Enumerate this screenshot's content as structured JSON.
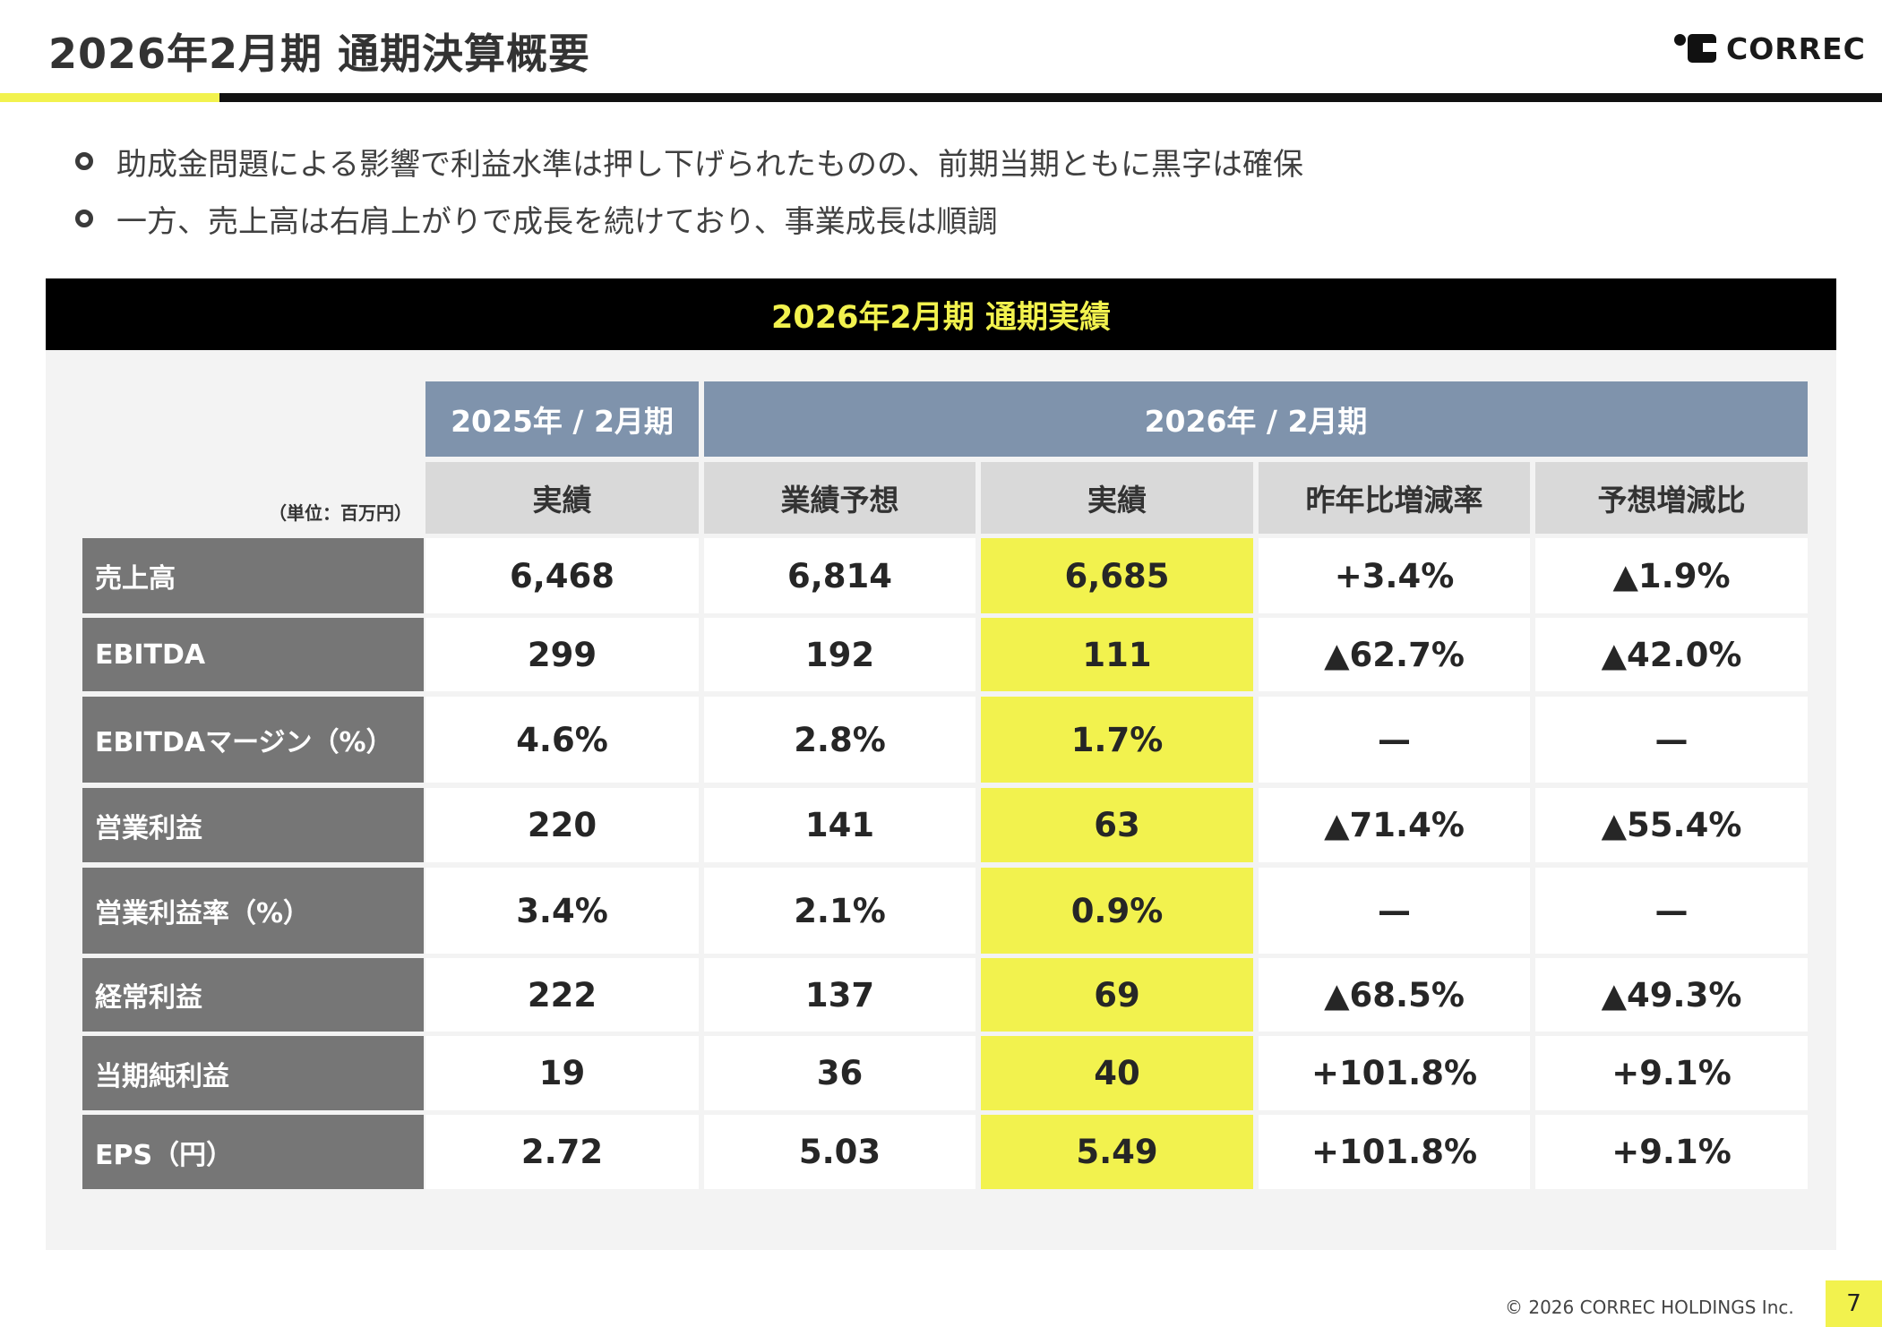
{
  "header": {
    "title": "2026年2月期 通期決算概要",
    "logo_text": "CORREC"
  },
  "bullets": [
    "助成金問題による影響で利益水準は押し下げられたものの、前期当期ともに黒字は確保",
    "一方、売上高は右肩上がりで成長を続けており、事業成長は順調"
  ],
  "table": {
    "banner": "2026年2月期 通期実績",
    "unit_note": "（単位：百万円）",
    "year_headers": [
      "2025年 / 2月期",
      "2026年 / 2月期"
    ],
    "columns": [
      "実績",
      "業績予想",
      "実績",
      "昨年比増減率",
      "予想増減比"
    ],
    "rows": [
      {
        "label": "売上高",
        "values": [
          "6,468",
          "6,814",
          "6,685",
          "+3.4%",
          "▲1.9%"
        ]
      },
      {
        "label": "EBITDA",
        "values": [
          "299",
          "192",
          "111",
          "▲62.7%",
          "▲42.0%"
        ]
      },
      {
        "label": "EBITDAマージン（%）",
        "values": [
          "4.6%",
          "2.8%",
          "1.7%",
          "—",
          "—"
        ]
      },
      {
        "label": "営業利益",
        "values": [
          "220",
          "141",
          "63",
          "▲71.4%",
          "▲55.4%"
        ]
      },
      {
        "label": "営業利益率（%）",
        "values": [
          "3.4%",
          "2.1%",
          "0.9%",
          "—",
          "—"
        ]
      },
      {
        "label": "経常利益",
        "values": [
          "222",
          "137",
          "69",
          "▲68.5%",
          "▲49.3%"
        ]
      },
      {
        "label": "当期純利益",
        "values": [
          "19",
          "36",
          "40",
          "+101.8%",
          "+9.1%"
        ]
      },
      {
        "label": "EPS（円）",
        "values": [
          "2.72",
          "5.03",
          "5.49",
          "+101.8%",
          "+9.1%"
        ]
      }
    ]
  },
  "footer": {
    "copyright": "© 2026 CORREC HOLDINGS Inc.",
    "page_number": "7"
  },
  "colors": {
    "accent": "#f2f24e",
    "header_blue": "#7f93ac",
    "label_gray": "#767676",
    "subheader_gray": "#d9d9d9"
  }
}
